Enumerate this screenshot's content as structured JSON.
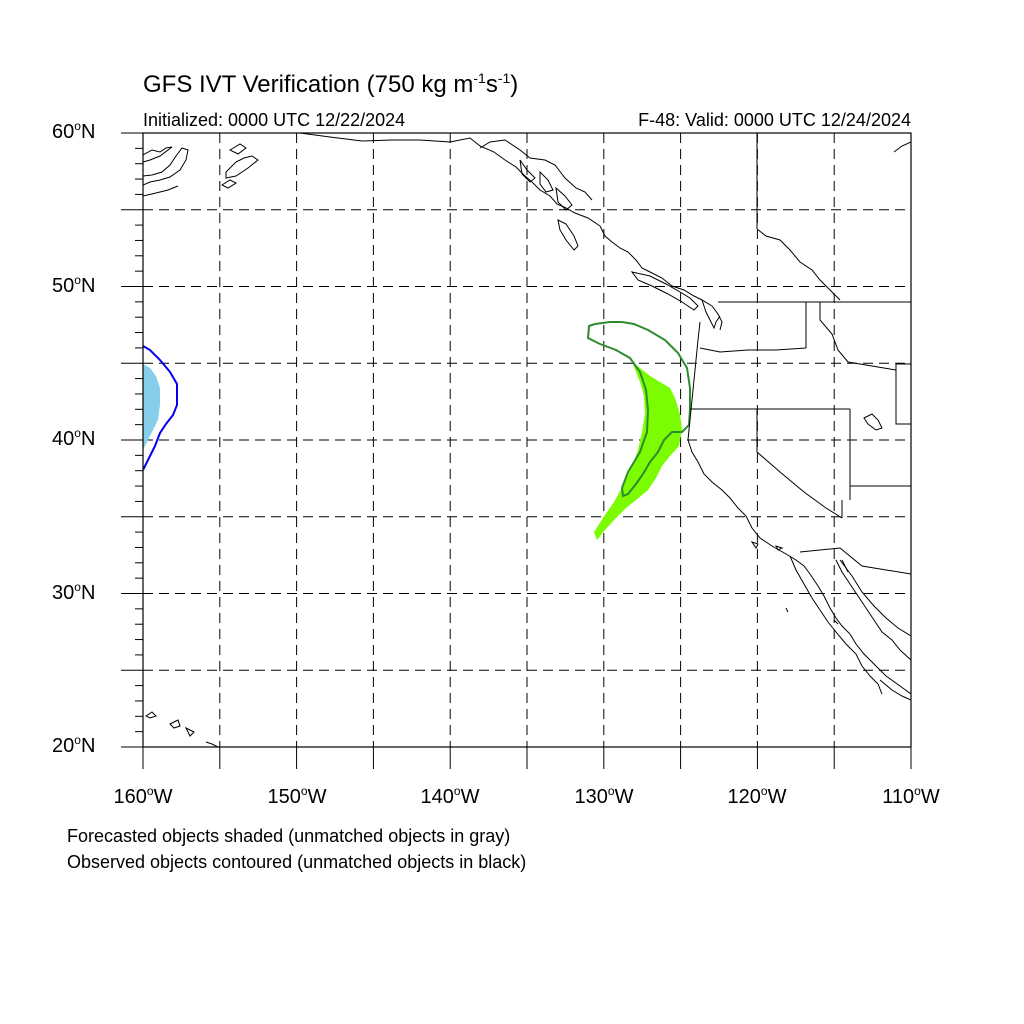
{
  "header": {
    "title_prefix": "GFS IVT Verification (750 kg m",
    "title_exp1": "-1",
    "title_mid": "s",
    "title_exp2": "-1",
    "title_suffix": ")",
    "initialized": "Initialized: 0000 UTC 12/22/2024",
    "valid": "F-48: Valid: 0000 UTC 12/24/2024"
  },
  "axes": {
    "lat_labels": [
      {
        "num": "60",
        "dir": "N"
      },
      {
        "num": "50",
        "dir": "N"
      },
      {
        "num": "40",
        "dir": "N"
      },
      {
        "num": "30",
        "dir": "N"
      },
      {
        "num": "20",
        "dir": "N"
      }
    ],
    "lon_labels": [
      {
        "num": "160",
        "dir": "W"
      },
      {
        "num": "150",
        "dir": "W"
      },
      {
        "num": "140",
        "dir": "W"
      },
      {
        "num": "130",
        "dir": "W"
      },
      {
        "num": "120",
        "dir": "W"
      },
      {
        "num": "110",
        "dir": "W"
      }
    ],
    "lat_range": [
      20,
      60
    ],
    "lon_range": [
      -160,
      -110
    ],
    "grid": "dashed every 5 degrees"
  },
  "legend": {
    "line1": "Forecasted objects shaded (unmatched objects in gray)",
    "line2": "Observed objects contoured (unmatched objects in black)"
  },
  "colors": {
    "matched_pair_1_forecast_fill": "#7cfc00",
    "matched_pair_1_observed_contour": "#2e8b2e",
    "matched_pair_2_forecast_fill": "#87ceeb",
    "matched_pair_2_observed_contour": "#0000ee",
    "coastline": "#000000",
    "grid": "#000000"
  }
}
